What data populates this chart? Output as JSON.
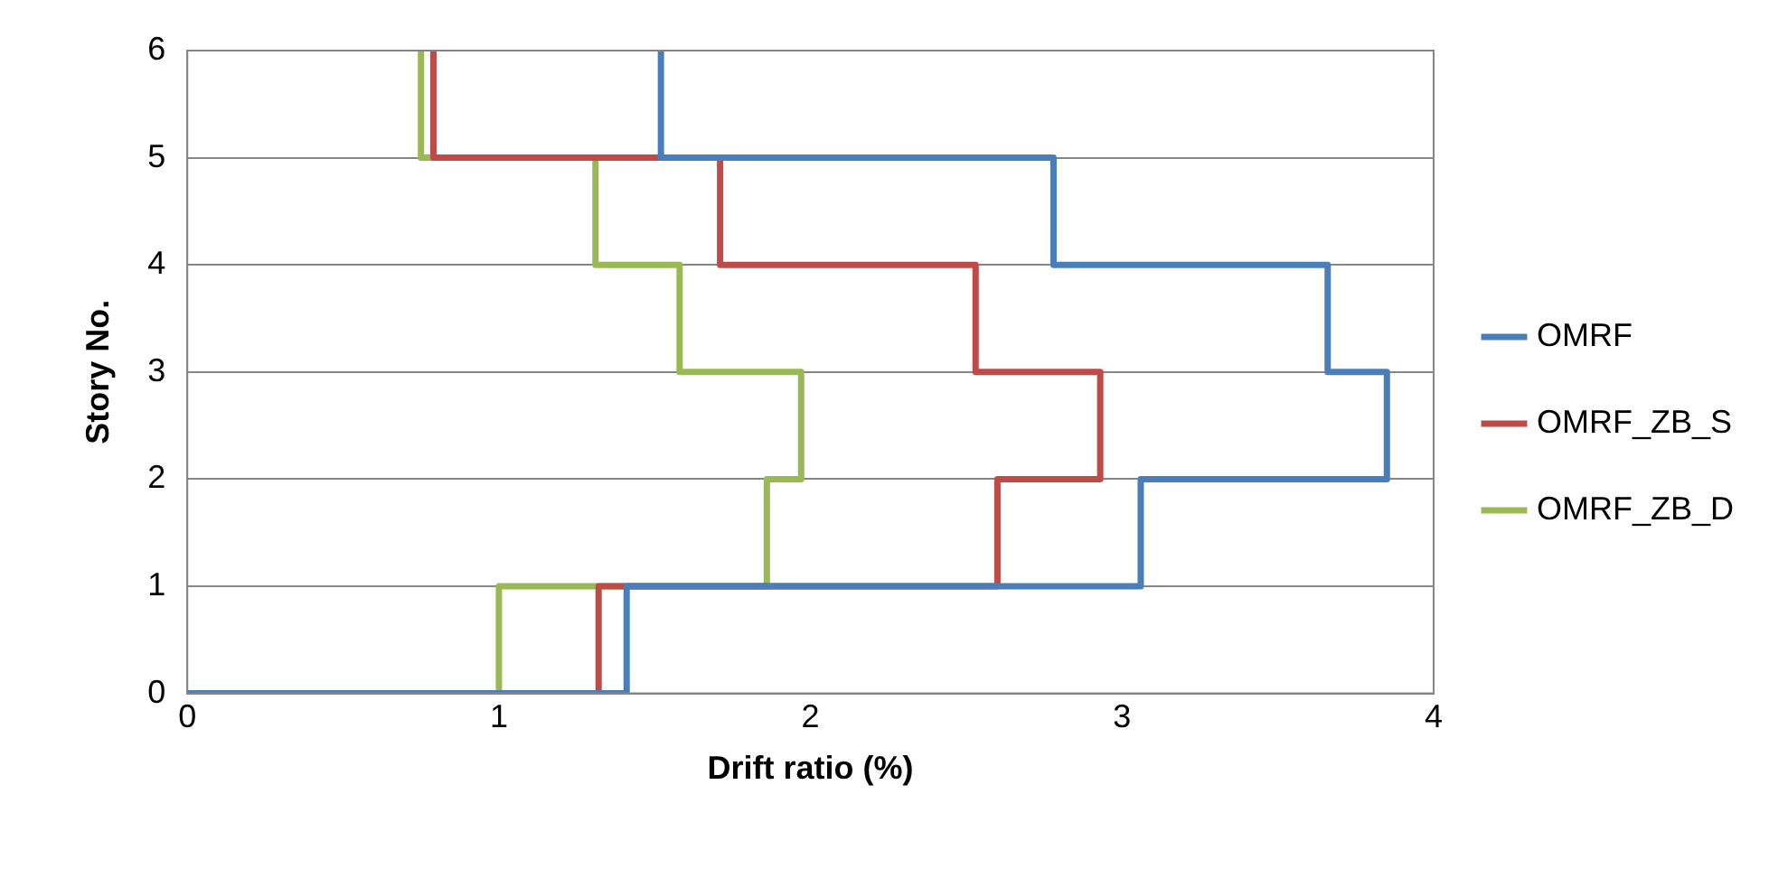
{
  "chart_data": {
    "type": "line",
    "xlabel": "Drift ratio (%)",
    "ylabel": "Story No.",
    "xlim": [
      0,
      4
    ],
    "xticks": [
      0,
      1,
      2,
      3,
      4
    ],
    "ylim": [
      0,
      6
    ],
    "yticks": [
      0,
      1,
      2,
      3,
      4,
      5,
      6
    ],
    "grid": "y",
    "legend": "right",
    "marker": "none",
    "line_style": "solid",
    "series": [
      {
        "name": "OMRF",
        "color": "#4a7ebb",
        "x": [
          0,
          1.41,
          1.41,
          3.06,
          3.06,
          3.85,
          3.85,
          3.66,
          3.66,
          2.78,
          2.78,
          1.52,
          1.52
        ],
        "values": [
          0,
          0,
          1,
          1,
          2,
          2,
          3,
          3,
          4,
          4,
          5,
          5,
          6
        ]
      },
      {
        "name": "OMRF_ZB_S",
        "color": "#be4b48",
        "x": [
          0,
          1.32,
          1.32,
          2.6,
          2.6,
          2.93,
          2.93,
          2.53,
          2.53,
          1.71,
          1.71,
          0.79,
          0.79
        ],
        "values": [
          0,
          0,
          1,
          1,
          2,
          2,
          3,
          3,
          4,
          4,
          5,
          5,
          6
        ]
      },
      {
        "name": "OMRF_ZB_D",
        "color": "#98b954",
        "x": [
          0,
          1.0,
          1.0,
          1.86,
          1.86,
          1.97,
          1.97,
          1.58,
          1.58,
          1.31,
          1.31,
          0.75,
          0.75
        ],
        "values": [
          0,
          0,
          1,
          1,
          2,
          2,
          3,
          3,
          4,
          4,
          5,
          5,
          6
        ]
      }
    ]
  }
}
